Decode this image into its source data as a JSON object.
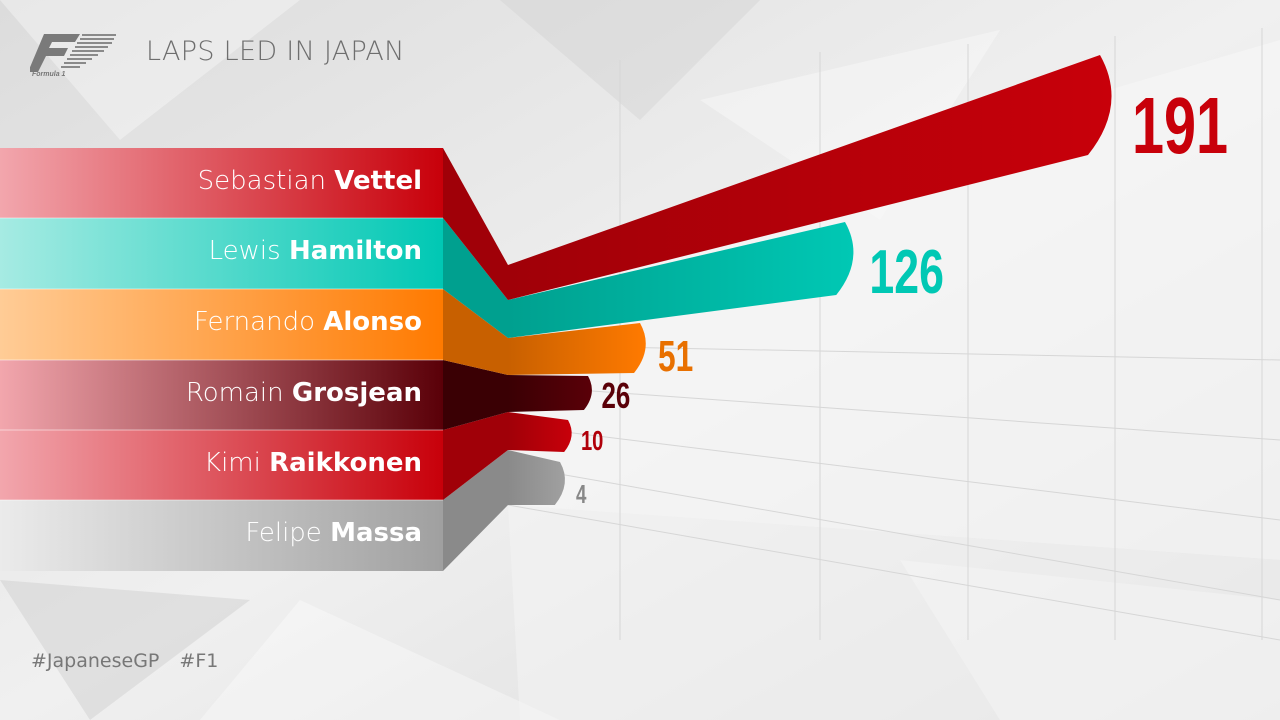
{
  "header": {
    "title": "LAPS LED IN JAPAN",
    "logo_text": "Formula 1"
  },
  "footer": {
    "hashtags": [
      "#JapaneseGP",
      "#F1"
    ]
  },
  "chart_data": {
    "type": "bar",
    "title": "LAPS LED IN JAPAN",
    "orientation": "horizontal",
    "categories": [
      {
        "first": "Sebastian",
        "last": "Vettel"
      },
      {
        "first": "Lewis",
        "last": "Hamilton"
      },
      {
        "first": "Fernando",
        "last": "Alonso"
      },
      {
        "first": "Romain",
        "last": "Grosjean"
      },
      {
        "first": "Kimi",
        "last": "Raikkonen"
      },
      {
        "first": "Felipe",
        "last": "Massa"
      }
    ],
    "values": [
      191,
      126,
      51,
      26,
      10,
      4
    ],
    "value_labels": [
      "191",
      "126",
      "51",
      "26",
      "10",
      "4"
    ],
    "colors": [
      "#c8000a",
      "#00c8b4",
      "#ff7a00",
      "#5a0008",
      "#c8000a",
      "#a0a0a0"
    ],
    "grid": true,
    "legend": "none"
  }
}
